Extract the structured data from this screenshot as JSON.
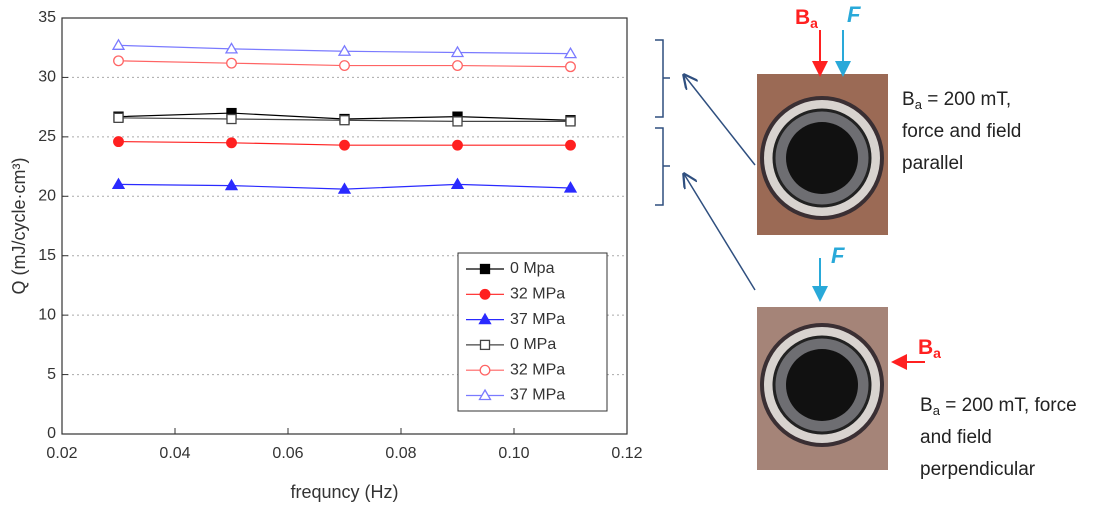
{
  "chart_data": {
    "type": "line",
    "xlabel": "frequncy (Hz)",
    "ylabel": "Q (mJ/cycle·cm³)",
    "x": [
      0.03,
      0.05,
      0.07,
      0.09,
      0.11
    ],
    "xlim": [
      0.02,
      0.12
    ],
    "xticks": [
      0.02,
      0.04,
      0.06,
      0.08,
      {
        "value": 0.1,
        "label": "0.10"
      },
      0.12
    ],
    "ylim": [
      0,
      35
    ],
    "yticks": [
      0,
      5,
      10,
      15,
      20,
      25,
      30,
      35
    ],
    "grid": true,
    "legend": "lower right",
    "series": [
      {
        "name": "0 Mpa",
        "color": "#000000",
        "marker": "square",
        "filled": true,
        "values": [
          26.7,
          27.0,
          26.5,
          26.7,
          26.4
        ]
      },
      {
        "name": "32 MPa",
        "color": "#ff2020",
        "marker": "circle",
        "filled": true,
        "values": [
          24.6,
          24.5,
          24.3,
          24.3,
          24.3
        ]
      },
      {
        "name": "37 MPa",
        "color": "#2a2aff",
        "marker": "triangle",
        "filled": true,
        "values": [
          21.0,
          20.9,
          20.6,
          21.0,
          20.7
        ]
      },
      {
        "name": "0 MPa",
        "color": "#444444",
        "marker": "square",
        "filled": false,
        "values": [
          26.6,
          26.5,
          26.4,
          26.3,
          26.3
        ]
      },
      {
        "name": "32 MPa",
        "color": "#ff6464",
        "marker": "circle",
        "filled": false,
        "values": [
          31.4,
          31.2,
          31.0,
          31.0,
          30.9
        ]
      },
      {
        "name": "37 MPa",
        "color": "#7a7aff",
        "marker": "triangle",
        "filled": false,
        "values": [
          32.7,
          32.4,
          32.2,
          32.1,
          32.0
        ]
      }
    ]
  },
  "annotations": {
    "top_field": {
      "symbol": "B",
      "subscript": "a"
    },
    "top_force": "F",
    "parallel": {
      "symbol": "B",
      "subscript": "a",
      "lines": [
        " = 200 mT,",
        "force and field",
        "parallel"
      ]
    },
    "bottom_force": "F",
    "bottom_field": {
      "symbol": "B",
      "subscript": "a"
    },
    "perpendicular": {
      "symbol": "B",
      "subscript": "a",
      "lines": [
        " = 200 mT, force",
        "and field",
        "perpendicular"
      ]
    }
  }
}
